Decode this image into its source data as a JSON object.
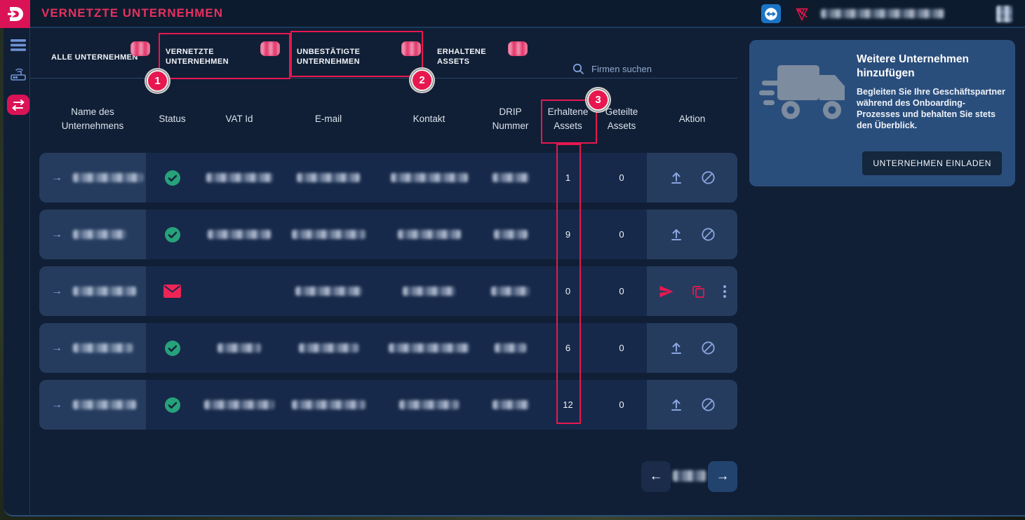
{
  "topbar": {
    "title": "VERNETZTE UNTERNEHMEN",
    "icons": [
      "drip-logo",
      "teamviewer-icon",
      "v-brand-icon",
      "user-email-redacted",
      "app-grid-redacted"
    ]
  },
  "sidebar": {
    "items": [
      {
        "icon": "menu-icon",
        "active": false
      },
      {
        "icon": "router-icon",
        "active": false
      },
      {
        "icon": "swap-arrows-icon",
        "active": true
      }
    ]
  },
  "tabs": [
    {
      "label": "ALLE UNTERNEHMEN",
      "badge_redacted": true
    },
    {
      "label": "VERNETZTE UNTERNEHMEN",
      "badge_redacted": true
    },
    {
      "label": "UNBESTÄTIGTE UNTERNEHMEN",
      "badge_redacted": true
    },
    {
      "label": "ERHALTENE ASSETS",
      "badge_redacted": true
    }
  ],
  "search": {
    "placeholder": "Firmen suchen"
  },
  "table": {
    "columns": [
      "Name des Unternehmens",
      "Status",
      "VAT Id",
      "E-mail",
      "Kontakt",
      "DRIP Nummer",
      "Erhaltene Assets",
      "Geteilte Assets",
      "Aktion"
    ],
    "rows": [
      {
        "status": "confirmed",
        "erhaltene_assets": "1",
        "geteilte_assets": "0",
        "actions": [
          "upload",
          "block"
        ],
        "redact": {
          "name": 100,
          "vat": 95,
          "email": 90,
          "kontakt": 110,
          "drip": 52
        }
      },
      {
        "status": "confirmed",
        "erhaltene_assets": "9",
        "geteilte_assets": "0",
        "actions": [
          "upload",
          "block"
        ],
        "redact": {
          "name": 76,
          "vat": 90,
          "email": 105,
          "kontakt": 90,
          "drip": 48
        }
      },
      {
        "status": "invited",
        "erhaltene_assets": "0",
        "geteilte_assets": "0",
        "actions": [
          "send",
          "copy",
          "more"
        ],
        "redact": {
          "name": 90,
          "vat": 0,
          "email": 95,
          "kontakt": 75,
          "drip": 55
        }
      },
      {
        "status": "confirmed",
        "erhaltene_assets": "6",
        "geteilte_assets": "0",
        "actions": [
          "upload",
          "block"
        ],
        "redact": {
          "name": 85,
          "vat": 62,
          "email": 85,
          "kontakt": 115,
          "drip": 45
        }
      },
      {
        "status": "confirmed",
        "erhaltene_assets": "12",
        "geteilte_assets": "0",
        "actions": [
          "upload",
          "block"
        ],
        "redact": {
          "name": 90,
          "vat": 100,
          "email": 105,
          "kontakt": 85,
          "drip": 52
        }
      }
    ]
  },
  "invite_card": {
    "title": "Weitere Unternehmen hinzufügen",
    "body": "Begleiten Sie Ihre Geschäftspartner während des Onboarding-Prozesses und behalten Sie stets den Überblick.",
    "button": "UNTERNEHMEN EINLADEN",
    "icon": "truck-icon"
  },
  "pagination": {
    "prev": "←",
    "next": "→",
    "page_label_redacted": true
  },
  "annotations": [
    {
      "number": "1",
      "target": "tab-vernetzte-unternehmen"
    },
    {
      "number": "2",
      "target": "tab-unbestaetigte-unternehmen"
    },
    {
      "number": "3",
      "target": "column-erhaltene-assets"
    }
  ],
  "colors": {
    "accent_pink": "#e8174f",
    "logo_pink": "#da1356",
    "light_blue": "#8aa5dd",
    "status_green": "#27a27b",
    "panel_bg": "#101f35",
    "row_bg": "#17294a",
    "row_highlight_bg": "#253c5f",
    "card_bg": "#2a4e7c",
    "topbar_bg": "#0d1b2e"
  }
}
